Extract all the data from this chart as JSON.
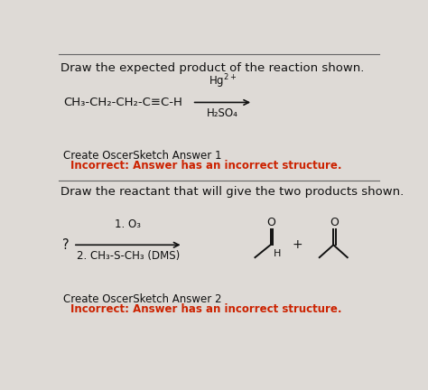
{
  "bg_color": "#dedad6",
  "title1": "Draw the expected product of the reaction shown.",
  "title2": "Draw the reactant that will give the two products shown.",
  "reactant1": "CH₃-CH₂-CH₂-C≡C-H",
  "reagent1_top": "Hg$^{2+}$",
  "reagent1_bot": "H₂SO₄",
  "answer1_label": "Create OscerSketch Answer 1",
  "answer1_incorrect": "Incorrect: Answer has an incorrect structure.",
  "reactant2_label": "?",
  "reagent2_top": "1. O₃",
  "reagent2_bot": "2. CH₃-S-CH₃ (DMS)",
  "answer2_label": "Create OscerSketch Answer 2",
  "answer2_incorrect": "Incorrect: Answer has an incorrect structure.",
  "plus_sign": "+",
  "divider_color": "#666666",
  "text_color": "#111111",
  "red_color": "#cc2200",
  "font_size_title": 9.5,
  "font_size_text": 9,
  "font_size_chem": 9.5
}
